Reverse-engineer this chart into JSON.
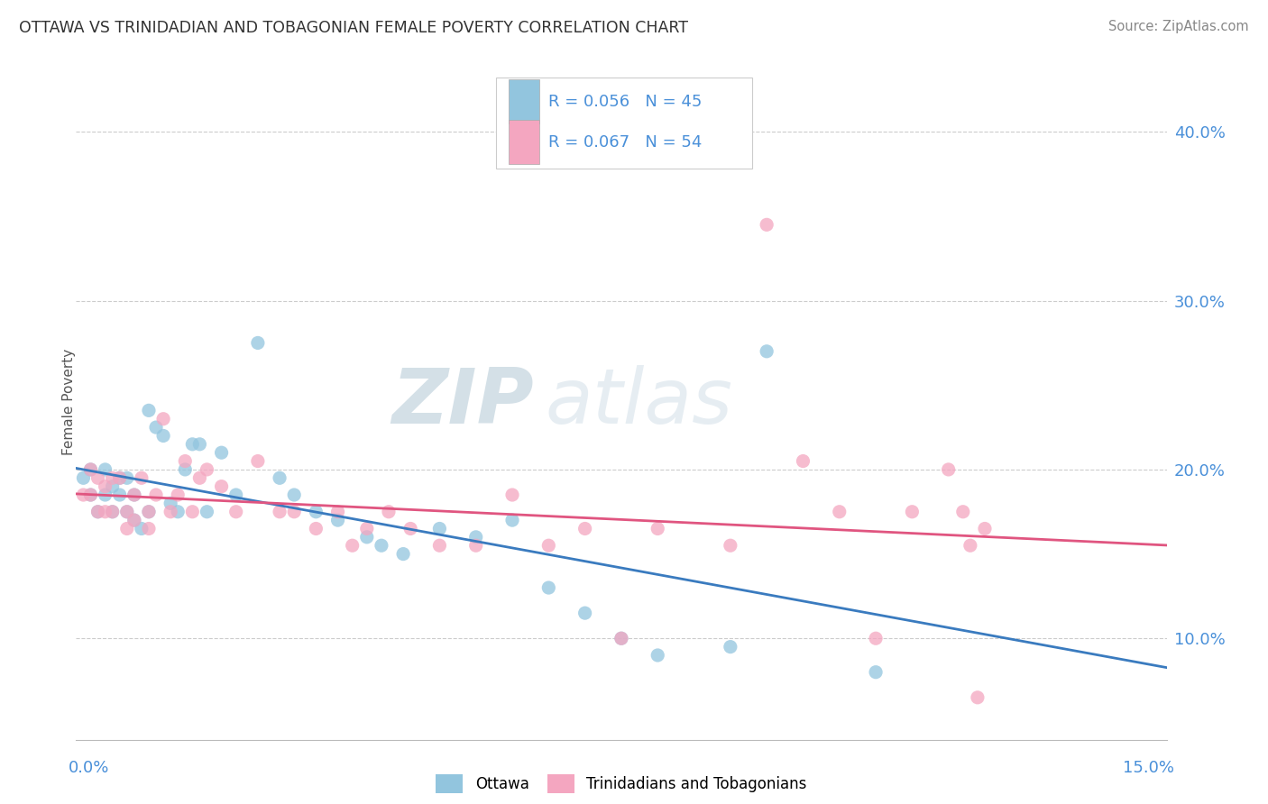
{
  "title": "OTTAWA VS TRINIDADIAN AND TOBAGONIAN FEMALE POVERTY CORRELATION CHART",
  "source": "Source: ZipAtlas.com",
  "ylabel": "Female Poverty",
  "ytick_values": [
    0.1,
    0.2,
    0.3,
    0.4
  ],
  "ytick_labels": [
    "10.0%",
    "20.0%",
    "30.0%",
    "40.0%"
  ],
  "xlim": [
    0.0,
    0.15
  ],
  "ylim": [
    0.04,
    0.44
  ],
  "legend_r1": "R = 0.056",
  "legend_n1": "N = 45",
  "legend_r2": "R = 0.067",
  "legend_n2": "N = 54",
  "color_ottawa": "#92c5de",
  "color_trinidadian": "#f4a6c0",
  "color_trend_ottawa": "#3a7bbf",
  "color_trend_trinidadian": "#e05580",
  "background_color": "#ffffff",
  "watermark_zip": "ZIP",
  "watermark_atlas": "atlas",
  "ottawa_x": [
    0.001,
    0.002,
    0.002,
    0.003,
    0.004,
    0.004,
    0.005,
    0.005,
    0.006,
    0.006,
    0.007,
    0.007,
    0.008,
    0.008,
    0.009,
    0.01,
    0.01,
    0.011,
    0.012,
    0.013,
    0.014,
    0.015,
    0.016,
    0.017,
    0.018,
    0.02,
    0.022,
    0.025,
    0.028,
    0.03,
    0.033,
    0.036,
    0.04,
    0.042,
    0.045,
    0.05,
    0.055,
    0.06,
    0.065,
    0.07,
    0.075,
    0.08,
    0.09,
    0.095,
    0.11
  ],
  "ottawa_y": [
    0.195,
    0.185,
    0.2,
    0.175,
    0.2,
    0.185,
    0.19,
    0.175,
    0.195,
    0.185,
    0.195,
    0.175,
    0.185,
    0.17,
    0.165,
    0.235,
    0.175,
    0.225,
    0.22,
    0.18,
    0.175,
    0.2,
    0.215,
    0.215,
    0.175,
    0.21,
    0.185,
    0.275,
    0.195,
    0.185,
    0.175,
    0.17,
    0.16,
    0.155,
    0.15,
    0.165,
    0.16,
    0.17,
    0.13,
    0.115,
    0.1,
    0.09,
    0.095,
    0.27,
    0.08
  ],
  "trinidadian_x": [
    0.001,
    0.002,
    0.002,
    0.003,
    0.003,
    0.004,
    0.004,
    0.005,
    0.005,
    0.006,
    0.007,
    0.007,
    0.008,
    0.008,
    0.009,
    0.01,
    0.01,
    0.011,
    0.012,
    0.013,
    0.014,
    0.015,
    0.016,
    0.017,
    0.018,
    0.02,
    0.022,
    0.025,
    0.028,
    0.03,
    0.033,
    0.036,
    0.038,
    0.04,
    0.043,
    0.046,
    0.05,
    0.055,
    0.06,
    0.065,
    0.07,
    0.075,
    0.08,
    0.09,
    0.095,
    0.1,
    0.105,
    0.11,
    0.115,
    0.12,
    0.122,
    0.123,
    0.124,
    0.125
  ],
  "trinidadian_y": [
    0.185,
    0.185,
    0.2,
    0.195,
    0.175,
    0.19,
    0.175,
    0.195,
    0.175,
    0.195,
    0.175,
    0.165,
    0.185,
    0.17,
    0.195,
    0.175,
    0.165,
    0.185,
    0.23,
    0.175,
    0.185,
    0.205,
    0.175,
    0.195,
    0.2,
    0.19,
    0.175,
    0.205,
    0.175,
    0.175,
    0.165,
    0.175,
    0.155,
    0.165,
    0.175,
    0.165,
    0.155,
    0.155,
    0.185,
    0.155,
    0.165,
    0.1,
    0.165,
    0.155,
    0.345,
    0.205,
    0.175,
    0.1,
    0.175,
    0.2,
    0.175,
    0.155,
    0.065,
    0.165
  ]
}
